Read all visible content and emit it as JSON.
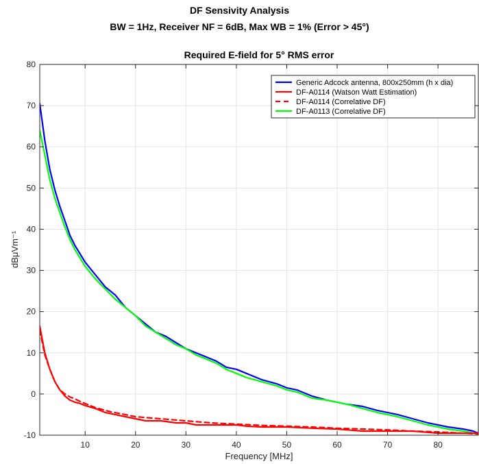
{
  "page": {
    "title": "DF Sensivity Analysis",
    "subtitle": "BW = 1Hz, Receiver NF = 6dB, Max WB = 1% (Error > 45°)"
  },
  "chart_data": {
    "type": "line",
    "title": "Required E-field for 5° RMS error",
    "xlabel": "Frequency [MHz]",
    "ylabel": "dBμVm⁻¹",
    "xlim": [
      1,
      88
    ],
    "ylim": [
      -10,
      80
    ],
    "xticks": [
      10,
      20,
      30,
      40,
      50,
      60,
      70,
      80
    ],
    "yticks": [
      -10,
      0,
      10,
      20,
      30,
      40,
      50,
      60,
      70,
      80
    ],
    "grid": true,
    "legend_position": "top-right",
    "series": [
      {
        "name": "Generic Adcock antenna, 800x250mm (h x dia)",
        "color": "#0000ff",
        "style": "solid",
        "x": [
          1,
          2,
          3,
          4,
          5,
          6,
          7,
          8,
          9,
          10,
          12,
          14,
          15,
          16,
          18,
          20,
          22,
          24,
          26,
          28,
          30,
          32,
          34,
          36,
          38,
          40,
          42,
          45,
          48,
          50,
          52,
          55,
          58,
          60,
          62,
          65,
          68,
          70,
          72,
          75,
          78,
          80,
          82,
          85,
          87,
          88
        ],
        "values": [
          70.5,
          61.5,
          54.5,
          49.5,
          45.5,
          42,
          38.5,
          36,
          34,
          32,
          29,
          26,
          25,
          24,
          21,
          19,
          17,
          15,
          14,
          12.5,
          11,
          10,
          9,
          8,
          6.5,
          6,
          5,
          3.5,
          2.5,
          1.5,
          1,
          -0.5,
          -1.5,
          -2,
          -2.5,
          -3,
          -4,
          -4.5,
          -5,
          -6,
          -7,
          -7.5,
          -8,
          -8.5,
          -9,
          -9.5
        ]
      },
      {
        "name": "DF-A0114 (Watson Watt Estimation)",
        "color": "#ff0000",
        "style": "solid",
        "x": [
          1,
          2,
          3,
          4,
          5,
          6,
          7,
          8,
          9,
          10,
          12,
          14,
          16,
          18,
          20,
          22,
          25,
          28,
          30,
          32,
          35,
          38,
          40,
          42,
          45,
          48,
          50,
          55,
          60,
          65,
          70,
          75,
          80,
          85,
          88
        ],
        "values": [
          16.5,
          10,
          6,
          3,
          1,
          -0.5,
          -1.5,
          -2,
          -2.3,
          -2.8,
          -3.5,
          -4.5,
          -5,
          -5.5,
          -6,
          -6.5,
          -6.5,
          -7,
          -7,
          -7.5,
          -7.5,
          -7.5,
          -7.5,
          -7.8,
          -8,
          -8,
          -8,
          -8.3,
          -8.5,
          -9,
          -9,
          -9,
          -9.5,
          -9.5,
          -9.5
        ]
      },
      {
        "name": "DF-A0114 (Correlative DF)",
        "color": "#ff0000",
        "style": "dashed",
        "x": [
          1,
          2,
          3,
          4,
          5,
          6,
          7,
          8,
          9,
          10,
          12,
          15,
          18,
          20,
          25,
          30,
          35,
          40,
          45,
          50,
          55,
          60,
          65,
          70,
          75,
          80,
          85,
          88
        ],
        "values": [
          15.5,
          9.5,
          6,
          3,
          1,
          0,
          -0.7,
          -1.2,
          -1.8,
          -2.3,
          -3.3,
          -4.3,
          -5,
          -5.5,
          -6,
          -6.5,
          -7,
          -7.3,
          -7.6,
          -7.8,
          -8,
          -8.3,
          -8.5,
          -8.7,
          -9,
          -9.2,
          -9.5,
          -9.7
        ]
      },
      {
        "name": "DF-A0113 (Correlative DF)",
        "color": "#00ff00",
        "style": "solid",
        "x": [
          1,
          2,
          3,
          4,
          5,
          6,
          7,
          8,
          9,
          10,
          12,
          14,
          16,
          18,
          20,
          22,
          24,
          26,
          28,
          30,
          32,
          34,
          36,
          38,
          40,
          42,
          45,
          48,
          50,
          52,
          55,
          58,
          60,
          62,
          65,
          68,
          70,
          72,
          75,
          78,
          80,
          82,
          85,
          88
        ],
        "values": [
          64,
          58,
          52,
          47.5,
          44,
          40.5,
          37.5,
          35,
          33,
          31,
          28,
          25.5,
          23,
          21,
          19,
          16.5,
          15,
          13.5,
          12,
          11,
          9.5,
          8.5,
          7.5,
          6,
          5,
          4,
          3,
          2,
          1,
          0.5,
          -1,
          -1.5,
          -2,
          -2.5,
          -3.5,
          -4.5,
          -5,
          -5.5,
          -6.5,
          -7.5,
          -8,
          -8.5,
          -9,
          -9.7
        ]
      }
    ]
  }
}
